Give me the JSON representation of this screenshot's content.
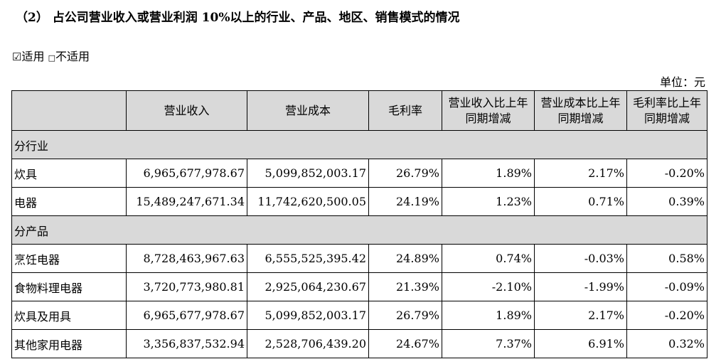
{
  "heading": "（2） 占公司营业收入或营业利润 10%以上的行业、产品、地区、销售模式的情况",
  "applicability": {
    "checked_box": "☑",
    "applicable": "适用",
    "unchecked_box": "□",
    "not_applicable": "不适用"
  },
  "unit": "单位：元",
  "table": {
    "headers": [
      "",
      "营业收入",
      "营业成本",
      "毛利率",
      "营业收入比上年同期增减",
      "营业成本比上年同期增减",
      "毛利率比上年同期增减"
    ],
    "sections": [
      {
        "title": "分行业",
        "rows": [
          {
            "name": "炊具",
            "revenue": "6,965,677,978.67",
            "cost": "5,099,852,003.17",
            "margin": "26.79%",
            "rev_change": "1.89%",
            "cost_change": "2.17%",
            "margin_change": "-0.20%"
          },
          {
            "name": "电器",
            "revenue": "15,489,247,671.34",
            "cost": "11,742,620,500.05",
            "margin": "24.19%",
            "rev_change": "1.23%",
            "cost_change": "0.71%",
            "margin_change": "0.39%"
          }
        ]
      },
      {
        "title": "分产品",
        "rows": [
          {
            "name": "烹饪电器",
            "revenue": "8,728,463,967.63",
            "cost": "6,555,525,395.42",
            "margin": "24.89%",
            "rev_change": "0.74%",
            "cost_change": "-0.03%",
            "margin_change": "0.58%"
          },
          {
            "name": "食物料理电器",
            "revenue": "3,720,773,980.81",
            "cost": "2,925,064,230.67",
            "margin": "21.39%",
            "rev_change": "-2.10%",
            "cost_change": "-1.99%",
            "margin_change": "-0.09%"
          },
          {
            "name": "炊具及用具",
            "revenue": "6,965,677,978.67",
            "cost": "5,099,852,003.17",
            "margin": "26.79%",
            "rev_change": "1.89%",
            "cost_change": "2.17%",
            "margin_change": "-0.20%"
          },
          {
            "name": "其他家用电器",
            "revenue": "3,356,837,532.94",
            "cost": "2,528,706,439.20",
            "margin": "24.67%",
            "rev_change": "7.37%",
            "cost_change": "6.91%",
            "margin_change": "0.32%"
          }
        ]
      }
    ]
  }
}
